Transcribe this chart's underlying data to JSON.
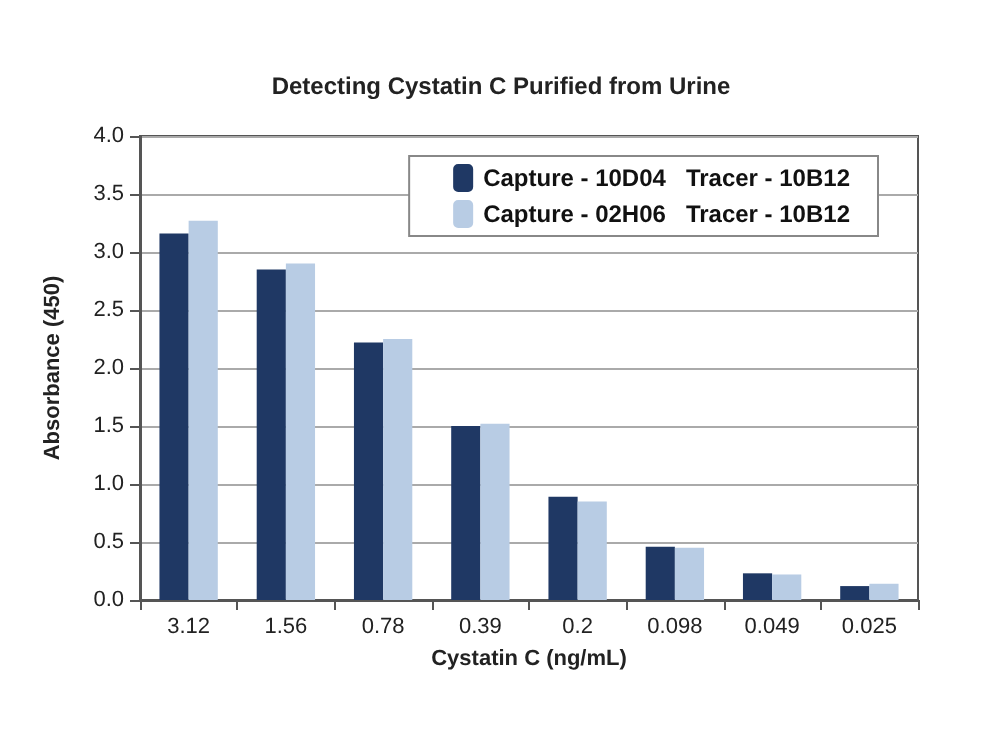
{
  "chart_data": {
    "type": "bar",
    "title": "Detecting Cystatin C Purified from Urine",
    "xlabel": "Cystatin C (ng/mL)",
    "ylabel": "Absorbance (450)",
    "categories": [
      "3.12",
      "1.56",
      "0.78",
      "0.39",
      "0.2",
      "0.098",
      "0.049",
      "0.025"
    ],
    "series": [
      {
        "name": "Capture - 10D04   Tracer - 10B12",
        "color": "#1f3864",
        "values": [
          3.16,
          2.85,
          2.22,
          1.5,
          0.89,
          0.46,
          0.23,
          0.12
        ]
      },
      {
        "name": "Capture - 02H06   Tracer - 10B12",
        "color": "#b8cce4",
        "values": [
          3.27,
          2.9,
          2.25,
          1.52,
          0.85,
          0.45,
          0.22,
          0.14
        ]
      }
    ],
    "ylim": [
      0,
      4
    ],
    "yticks": [
      {
        "value": 0,
        "label": "0.0"
      },
      0.5,
      {
        "value": 1,
        "label": "1.0"
      },
      1.5,
      {
        "value": 2,
        "label": "2.0"
      },
      2.5,
      {
        "value": 3,
        "label": "3.0"
      },
      3.5,
      {
        "value": 4,
        "label": "4.0"
      }
    ],
    "grid": "y",
    "legend": "top right"
  }
}
